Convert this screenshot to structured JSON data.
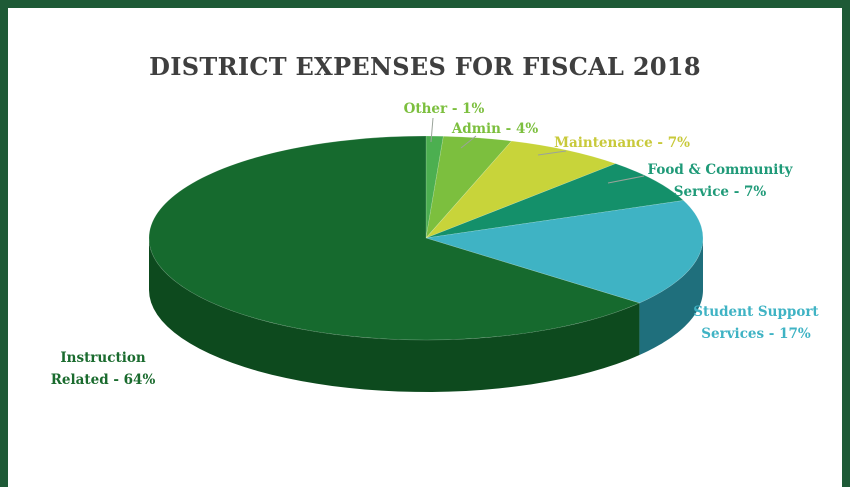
{
  "chart_data": {
    "type": "pie",
    "title": "DISTRICT EXPENSES FOR FISCAL 2018",
    "slices": [
      {
        "label": [
          "Other - 1%"
        ],
        "value": 1,
        "color": "#4caf50",
        "side": "#2e7a34"
      },
      {
        "label": [
          "Admin - 4%"
        ],
        "value": 4,
        "color": "#7cbf3e",
        "side": "#4f8a22"
      },
      {
        "label": [
          "Maintenance - 7%"
        ],
        "value": 7,
        "color": "#c8d43a",
        "side": "#939c1f"
      },
      {
        "label": [
          "Food & Community",
          "Service - 7%"
        ],
        "value": 7,
        "color": "#14906a",
        "side": "#0c6248"
      },
      {
        "label": [
          "Student Support",
          "Services - 17%"
        ],
        "value": 17,
        "color": "#3fb3c4",
        "side": "#1f6f7c"
      },
      {
        "label": [
          "Instruction",
          "Related - 64%"
        ],
        "value": 64,
        "color": "#166a2e",
        "side": "#0d4a1e"
      }
    ],
    "label_colors": [
      "#7cbf3e",
      "#7cbf3e",
      "#c8c93a",
      "#1f9a78",
      "#3fb3c4",
      "#1a6b2e"
    ]
  }
}
